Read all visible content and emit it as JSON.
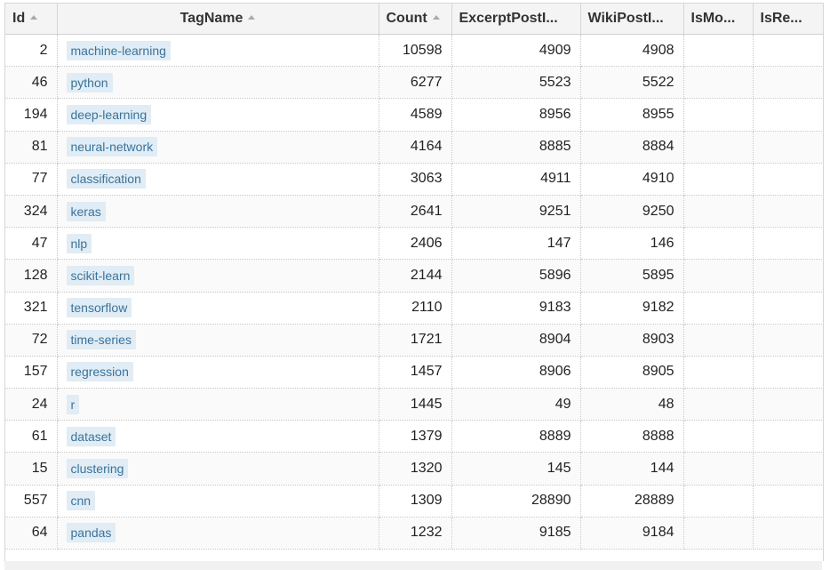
{
  "columns": [
    {
      "label": "Id",
      "sortable": true
    },
    {
      "label": "TagName",
      "sortable": true
    },
    {
      "label": "Count",
      "sortable": true
    },
    {
      "label": "ExcerptPostI...",
      "sortable": false
    },
    {
      "label": "WikiPostI...",
      "sortable": false
    },
    {
      "label": "IsMo...",
      "sortable": false
    },
    {
      "label": "IsRe...",
      "sortable": false
    }
  ],
  "rows": [
    {
      "id": "2",
      "tag": "machine-learning",
      "count": "10598",
      "excerpt": "4909",
      "wiki": "4908",
      "ismod": "",
      "isreq": ""
    },
    {
      "id": "46",
      "tag": "python",
      "count": "6277",
      "excerpt": "5523",
      "wiki": "5522",
      "ismod": "",
      "isreq": ""
    },
    {
      "id": "194",
      "tag": "deep-learning",
      "count": "4589",
      "excerpt": "8956",
      "wiki": "8955",
      "ismod": "",
      "isreq": ""
    },
    {
      "id": "81",
      "tag": "neural-network",
      "count": "4164",
      "excerpt": "8885",
      "wiki": "8884",
      "ismod": "",
      "isreq": ""
    },
    {
      "id": "77",
      "tag": "classification",
      "count": "3063",
      "excerpt": "4911",
      "wiki": "4910",
      "ismod": "",
      "isreq": ""
    },
    {
      "id": "324",
      "tag": "keras",
      "count": "2641",
      "excerpt": "9251",
      "wiki": "9250",
      "ismod": "",
      "isreq": ""
    },
    {
      "id": "47",
      "tag": "nlp",
      "count": "2406",
      "excerpt": "147",
      "wiki": "146",
      "ismod": "",
      "isreq": ""
    },
    {
      "id": "128",
      "tag": "scikit-learn",
      "count": "2144",
      "excerpt": "5896",
      "wiki": "5895",
      "ismod": "",
      "isreq": ""
    },
    {
      "id": "321",
      "tag": "tensorflow",
      "count": "2110",
      "excerpt": "9183",
      "wiki": "9182",
      "ismod": "",
      "isreq": ""
    },
    {
      "id": "72",
      "tag": "time-series",
      "count": "1721",
      "excerpt": "8904",
      "wiki": "8903",
      "ismod": "",
      "isreq": ""
    },
    {
      "id": "157",
      "tag": "regression",
      "count": "1457",
      "excerpt": "8906",
      "wiki": "8905",
      "ismod": "",
      "isreq": ""
    },
    {
      "id": "24",
      "tag": "r",
      "count": "1445",
      "excerpt": "49",
      "wiki": "48",
      "ismod": "",
      "isreq": ""
    },
    {
      "id": "61",
      "tag": "dataset",
      "count": "1379",
      "excerpt": "8889",
      "wiki": "8888",
      "ismod": "",
      "isreq": ""
    },
    {
      "id": "15",
      "tag": "clustering",
      "count": "1320",
      "excerpt": "145",
      "wiki": "144",
      "ismod": "",
      "isreq": ""
    },
    {
      "id": "557",
      "tag": "cnn",
      "count": "1309",
      "excerpt": "28890",
      "wiki": "28889",
      "ismod": "",
      "isreq": ""
    },
    {
      "id": "64",
      "tag": "pandas",
      "count": "1232",
      "excerpt": "9185",
      "wiki": "9184",
      "ismod": "",
      "isreq": ""
    }
  ],
  "colors": {
    "tag_bg": "#e1ecf4",
    "tag_text": "#39739d",
    "header_bg": "#f4f4f4"
  }
}
